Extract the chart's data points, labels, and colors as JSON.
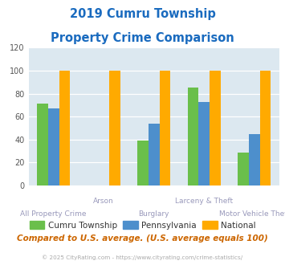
{
  "title_line1": "2019 Cumru Township",
  "title_line2": "Property Crime Comparison",
  "categories": [
    "All Property Crime",
    "Arson",
    "Burglary",
    "Larceny & Theft",
    "Motor Vehicle Theft"
  ],
  "cat_line1": [
    "All Property Crime",
    "Arson",
    "Burglary",
    "Larceny & Theft",
    "Motor Vehicle Theft"
  ],
  "cat_row1": [
    "",
    "Arson",
    "",
    "Larceny & Theft",
    ""
  ],
  "cat_row2": [
    "All Property Crime",
    "",
    "Burglary",
    "",
    "Motor Vehicle Theft"
  ],
  "cumru": [
    71,
    0,
    39,
    85,
    29
  ],
  "pennsylvania": [
    67,
    0,
    54,
    73,
    45
  ],
  "national": [
    100,
    100,
    100,
    100,
    100
  ],
  "color_cumru": "#6abf4b",
  "color_pennsylvania": "#4d8fcc",
  "color_national": "#ffaa00",
  "color_title": "#1a6bbf",
  "color_xlabel": "#9999bb",
  "color_bg_chart": "#dce8f0",
  "color_grid": "#ffffff",
  "color_footnote": "#cc6600",
  "color_copyright": "#aaaaaa",
  "ylim": [
    0,
    120
  ],
  "yticks": [
    0,
    20,
    40,
    60,
    80,
    100,
    120
  ],
  "bar_width": 0.22,
  "legend_labels": [
    "Cumru Township",
    "Pennsylvania",
    "National"
  ],
  "footnote": "Compared to U.S. average. (U.S. average equals 100)",
  "copyright": "© 2025 CityRating.com - https://www.cityrating.com/crime-statistics/"
}
